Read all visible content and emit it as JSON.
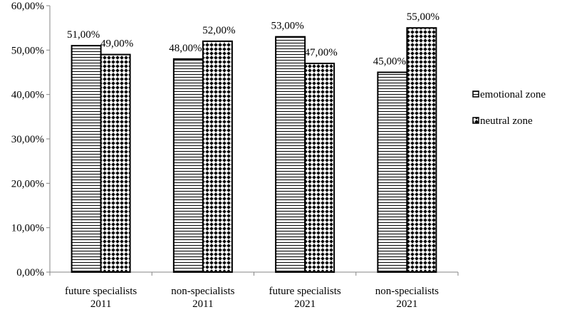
{
  "chart_data": {
    "type": "bar",
    "title": "",
    "xlabel": "",
    "ylabel": "",
    "categories": [
      [
        "future specialists",
        "2011"
      ],
      [
        "non-specialists",
        "2011"
      ],
      [
        "future specialists",
        "2021"
      ],
      [
        "non-specialists",
        "2021"
      ]
    ],
    "series": [
      {
        "name": "emotional zone",
        "pattern": "horizontal-lines",
        "values": [
          51,
          48,
          53,
          45
        ],
        "labels": [
          "51,00%",
          "48,00%",
          "53,00%",
          "45,00%"
        ]
      },
      {
        "name": "neutral zone",
        "pattern": "diamond-dots",
        "values": [
          49,
          52,
          47,
          55
        ],
        "labels": [
          "49,00%",
          "52,00%",
          "47,00%",
          "55,00%"
        ]
      }
    ],
    "ylim": [
      0,
      60
    ],
    "yticks": [
      0,
      10,
      20,
      30,
      40,
      50,
      60
    ],
    "ytick_labels": [
      "0,00%",
      "10,00%",
      "20,00%",
      "30,00%",
      "40,00%",
      "50,00%",
      "60,00%"
    ],
    "grid": false,
    "legend_position": "right"
  }
}
